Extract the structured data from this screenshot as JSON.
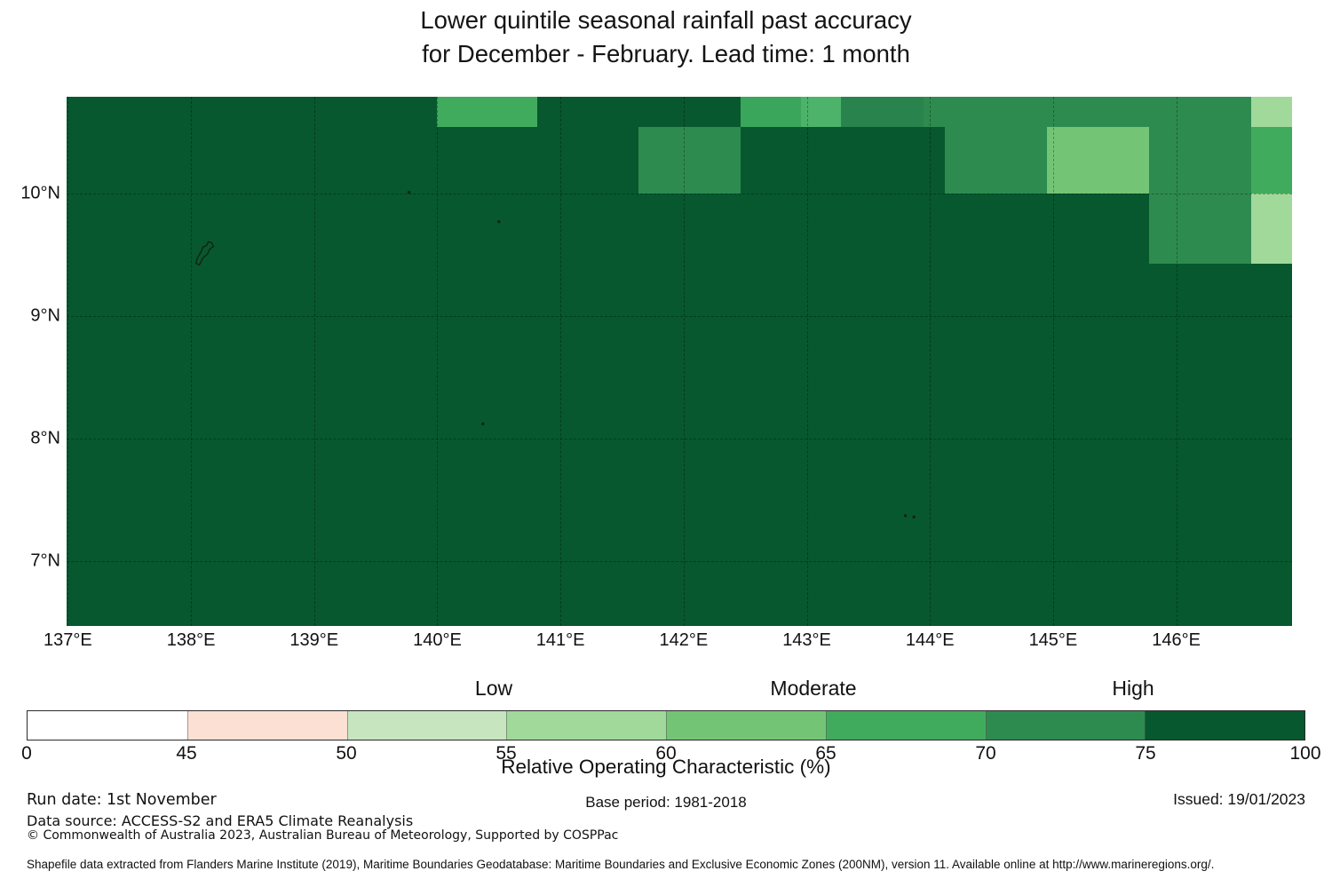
{
  "title": {
    "line1": "Lower quintile seasonal rainfall past accuracy",
    "line2": "for December - February. Lead time: 1 month"
  },
  "map": {
    "lon_min": 136.99,
    "lon_max": 146.94,
    "lat_min": 6.47,
    "lat_max": 10.79,
    "background_color": "#07582e",
    "grid_lons": [
      137,
      138,
      139,
      140,
      141,
      142,
      143,
      144,
      145,
      146
    ],
    "grid_lats": [
      7,
      8,
      9,
      10
    ],
    "x_ticks": [
      {
        "lon": 137,
        "label": "137°E"
      },
      {
        "lon": 138,
        "label": "138°E"
      },
      {
        "lon": 139,
        "label": "139°E"
      },
      {
        "lon": 140,
        "label": "140°E"
      },
      {
        "lon": 141,
        "label": "141°E"
      },
      {
        "lon": 142,
        "label": "142°E"
      },
      {
        "lon": 143,
        "label": "143°E"
      },
      {
        "lon": 144,
        "label": "144°E"
      },
      {
        "lon": 145,
        "label": "145°E"
      },
      {
        "lon": 146,
        "label": "146°E"
      }
    ],
    "y_ticks": [
      {
        "lat": 10,
        "label": "10°N"
      },
      {
        "lat": 9,
        "label": "9°N"
      },
      {
        "lat": 8,
        "label": "8°N"
      },
      {
        "lat": 7,
        "label": "7°N"
      }
    ],
    "islands": {
      "outline": [
        [
          138.068,
          9.417
        ],
        [
          138.097,
          9.475
        ],
        [
          138.133,
          9.504
        ],
        [
          138.154,
          9.548
        ],
        [
          138.183,
          9.569
        ],
        [
          138.169,
          9.598
        ],
        [
          138.14,
          9.606
        ],
        [
          138.126,
          9.577
        ],
        [
          138.097,
          9.562
        ],
        [
          138.082,
          9.526
        ],
        [
          138.053,
          9.475
        ],
        [
          138.039,
          9.432
        ]
      ],
      "dots": [
        [
          139.77,
          10.01
        ],
        [
          140.5,
          9.77
        ],
        [
          140.37,
          8.12
        ],
        [
          143.8,
          7.37
        ],
        [
          143.87,
          7.36
        ]
      ]
    }
  },
  "chart_data": {
    "type": "heatmap",
    "title": "Lower quintile seasonal rainfall past accuracy for December - February. Lead time: 1 month",
    "value_label": "Relative Operating Characteristic (%)",
    "lon_range": [
      136.99,
      146.94
    ],
    "lat_range": [
      6.47,
      10.79
    ],
    "background_value": "75-100",
    "cells": [
      {
        "lon": [
          140.0,
          140.81
        ],
        "lat": [
          10.54,
          10.79
        ],
        "roc": "65-70",
        "color": "#41ab5d"
      },
      {
        "lon": [
          142.46,
          142.95
        ],
        "lat": [
          10.54,
          10.79
        ],
        "roc": "65-70",
        "color": "#3aa65c"
      },
      {
        "lon": [
          142.95,
          143.28
        ],
        "lat": [
          10.54,
          10.79
        ],
        "roc": "65-70",
        "color": "#4db36a"
      },
      {
        "lon": [
          143.28,
          143.95
        ],
        "lat": [
          10.54,
          10.79
        ],
        "roc": "70-75",
        "color": "#28844c"
      },
      {
        "lon": [
          143.95,
          144.95
        ],
        "lat": [
          10.54,
          10.79
        ],
        "roc": "70-75",
        "color": "#2e8b50"
      },
      {
        "lon": [
          144.95,
          146.61
        ],
        "lat": [
          10.54,
          10.79
        ],
        "roc": "70-75",
        "color": "#2e8b50"
      },
      {
        "lon": [
          146.61,
          146.94
        ],
        "lat": [
          10.54,
          10.79
        ],
        "roc": "55-60",
        "color": "#a1d99b"
      },
      {
        "lon": [
          141.63,
          142.46
        ],
        "lat": [
          10.0,
          10.54
        ],
        "roc": "70-75",
        "color": "#2e8b50"
      },
      {
        "lon": [
          144.12,
          144.95
        ],
        "lat": [
          10.0,
          10.54
        ],
        "roc": "70-75",
        "color": "#2e8b50"
      },
      {
        "lon": [
          144.95,
          145.78
        ],
        "lat": [
          10.0,
          10.54
        ],
        "roc": "60-65",
        "color": "#74c476"
      },
      {
        "lon": [
          145.78,
          146.61
        ],
        "lat": [
          10.0,
          10.54
        ],
        "roc": "70-75",
        "color": "#2e8b50"
      },
      {
        "lon": [
          146.61,
          146.94
        ],
        "lat": [
          10.0,
          10.54
        ],
        "roc": "65-70",
        "color": "#41ab5d"
      },
      {
        "lon": [
          145.78,
          146.61
        ],
        "lat": [
          9.43,
          10.0
        ],
        "roc": "70-75",
        "color": "#2e8b50"
      },
      {
        "lon": [
          146.61,
          146.94
        ],
        "lat": [
          9.43,
          10.0
        ],
        "roc": "55-60",
        "color": "#a1d99b"
      }
    ],
    "colorbar": {
      "boundaries": [
        0,
        45,
        50,
        55,
        60,
        65,
        70,
        75,
        100
      ],
      "tick_labels": [
        "0",
        "45",
        "50",
        "55",
        "60",
        "65",
        "70",
        "75",
        "100"
      ],
      "colors": [
        "#ffffff",
        "#fbe0d3",
        "#c7e5bf",
        "#a1d99b",
        "#74c476",
        "#41ab5d",
        "#2e8b50",
        "#07582e"
      ],
      "band_labels": [
        {
          "text": "Low",
          "at": 55
        },
        {
          "text": "Moderate",
          "at": 65
        },
        {
          "text": "High",
          "at": 75
        }
      ]
    }
  },
  "footer": {
    "run_date": "Run date: 1st November",
    "base_period": "Base period: 1981-2018",
    "issued": "Issued: 19/01/2023",
    "data_source": "Data source: ACCESS-S2 and ERA5 Climate Reanalysis",
    "copyright": "© Commonwealth of Australia 2023, Australian Bureau of Meteorology, Supported by COSPPac",
    "shapefile": "Shapefile data extracted from Flanders Marine Institute (2019), Maritime Boundaries Geodatabase: Maritime Boundaries and Exclusive Economic Zones (200NM), version 11. Available online at http://www.marineregions.org/."
  }
}
